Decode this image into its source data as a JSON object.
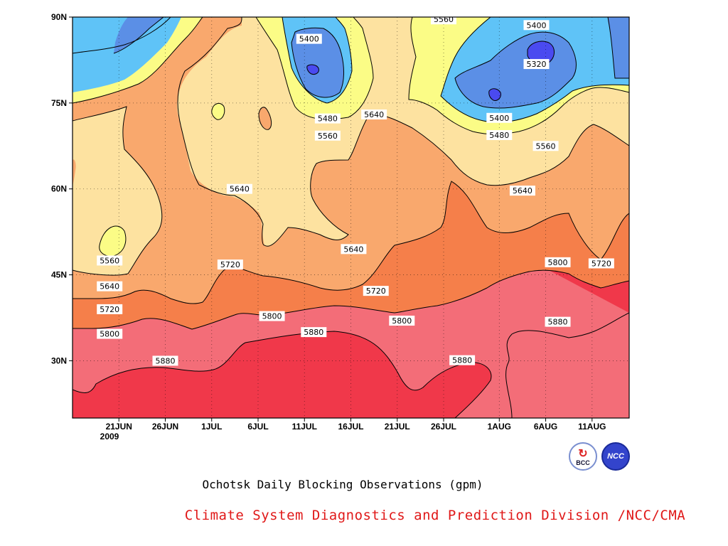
{
  "chart_data": {
    "type": "contour",
    "title": "Ochotsk Daily Blocking Observations (gpm)",
    "x_axis": {
      "ticks": [
        "21JUN",
        "26JUN",
        "1JUL",
        "6JUL",
        "11JUL",
        "16JUL",
        "21JUL",
        "26JUL",
        "1AUG",
        "6AUG",
        "11AUG"
      ],
      "tick_days": [
        5,
        10,
        15,
        20,
        25,
        30,
        35,
        40,
        46,
        51,
        56
      ],
      "year_label": "2009",
      "range_days": [
        0,
        60
      ]
    },
    "y_axis": {
      "ticks": [
        "30N",
        "45N",
        "60N",
        "75N",
        "90N"
      ],
      "tick_values": [
        30,
        45,
        60,
        75,
        90
      ],
      "range": [
        20,
        90
      ]
    },
    "grid": "dotted",
    "contour_levels": [
      5320,
      5400,
      5480,
      5560,
      5640,
      5720,
      5800,
      5880
    ],
    "level_colors": {
      "below_5320": "#4a4af0",
      "5320_5400": "#5b8fe6",
      "5400_5480": "#5fc3f7",
      "5480_5560": "#fbfc86",
      "5560_5640": "#fde2a0",
      "5640_5720": "#f9a86d",
      "5720_5800": "#f57f4a",
      "5800_5880": "#f36d78",
      "above_5880": "#f0384a"
    },
    "contour_labels": [
      {
        "value": "5560",
        "day": 4,
        "lat": 47.5
      },
      {
        "value": "5640",
        "day": 4,
        "lat": 43
      },
      {
        "value": "5720",
        "day": 4,
        "lat": 39
      },
      {
        "value": "5800",
        "day": 4,
        "lat": 34.7
      },
      {
        "value": "5880",
        "day": 10,
        "lat": 30
      },
      {
        "value": "5720",
        "day": 17,
        "lat": 46.8
      },
      {
        "value": "5640",
        "day": 18,
        "lat": 60
      },
      {
        "value": "5800",
        "day": 21.5,
        "lat": 37.8
      },
      {
        "value": "5880",
        "day": 26,
        "lat": 35
      },
      {
        "value": "5400",
        "day": 25.5,
        "lat": 86.2
      },
      {
        "value": "5480",
        "day": 27.5,
        "lat": 72.3
      },
      {
        "value": "5560",
        "day": 27.5,
        "lat": 69.3
      },
      {
        "value": "5640",
        "day": 30.3,
        "lat": 49.5
      },
      {
        "value": "5640",
        "day": 32.5,
        "lat": 73
      },
      {
        "value": "5720",
        "day": 32.7,
        "lat": 42.2
      },
      {
        "value": "5800",
        "day": 35.5,
        "lat": 37
      },
      {
        "value": "5560",
        "day": 40,
        "lat": 89.6
      },
      {
        "value": "5880",
        "day": 42,
        "lat": 30.1
      },
      {
        "value": "5400",
        "day": 46,
        "lat": 72.4
      },
      {
        "value": "5480",
        "day": 46,
        "lat": 69.4
      },
      {
        "value": "5400",
        "day": 50,
        "lat": 88.6
      },
      {
        "value": "5320",
        "day": 50,
        "lat": 81.8
      },
      {
        "value": "5560",
        "day": 51,
        "lat": 67.5
      },
      {
        "value": "5640",
        "day": 48.5,
        "lat": 59.7
      },
      {
        "value": "5800",
        "day": 52.3,
        "lat": 47.2
      },
      {
        "value": "5880",
        "day": 52.3,
        "lat": 36.8
      },
      {
        "value": "5720",
        "day": 57,
        "lat": 47
      }
    ]
  },
  "footer": {
    "credit": "Climate System Diagnostics and Prediction Division /NCC/CMA",
    "logo_left_text": "BCC",
    "logo_right_text": "NCC"
  }
}
